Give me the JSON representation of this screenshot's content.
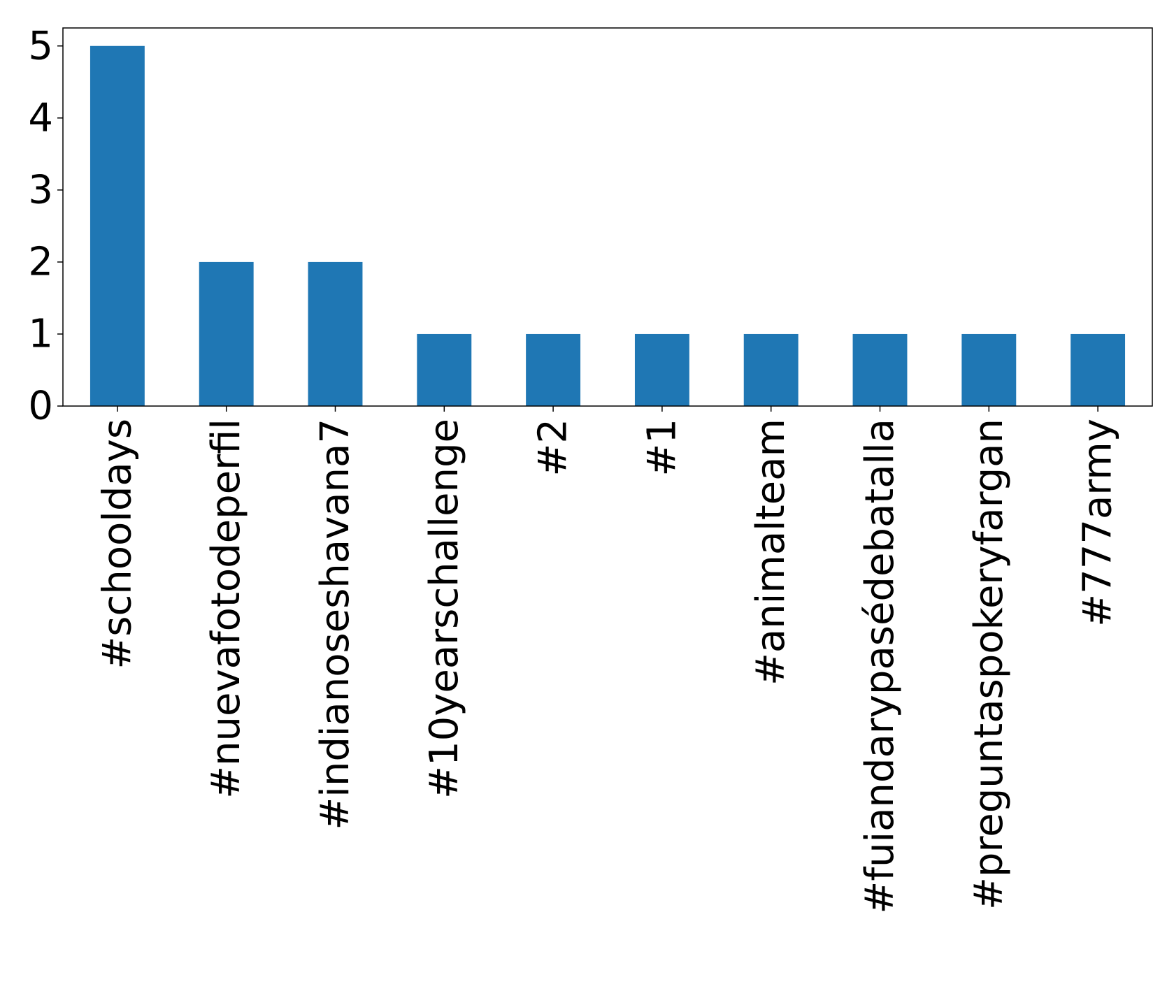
{
  "chart_data": {
    "type": "bar",
    "categories": [
      "#schooldays",
      "#nuevafotodeperfil",
      "#indianoseshavana7",
      "#10yearschallenge",
      "#2",
      "#1",
      "#animalteam",
      "#fuiandarypasédebatalla",
      "#preguntaspokeryfargan",
      "#777army"
    ],
    "values": [
      5,
      2,
      2,
      1,
      1,
      1,
      1,
      1,
      1,
      1
    ],
    "yticks": [
      "0",
      "1",
      "2",
      "3",
      "4",
      "5"
    ],
    "ylim": [
      0,
      5.25
    ],
    "title": "",
    "xlabel": "",
    "ylabel": "",
    "grid": false,
    "bar_color": "#1f77b4"
  }
}
